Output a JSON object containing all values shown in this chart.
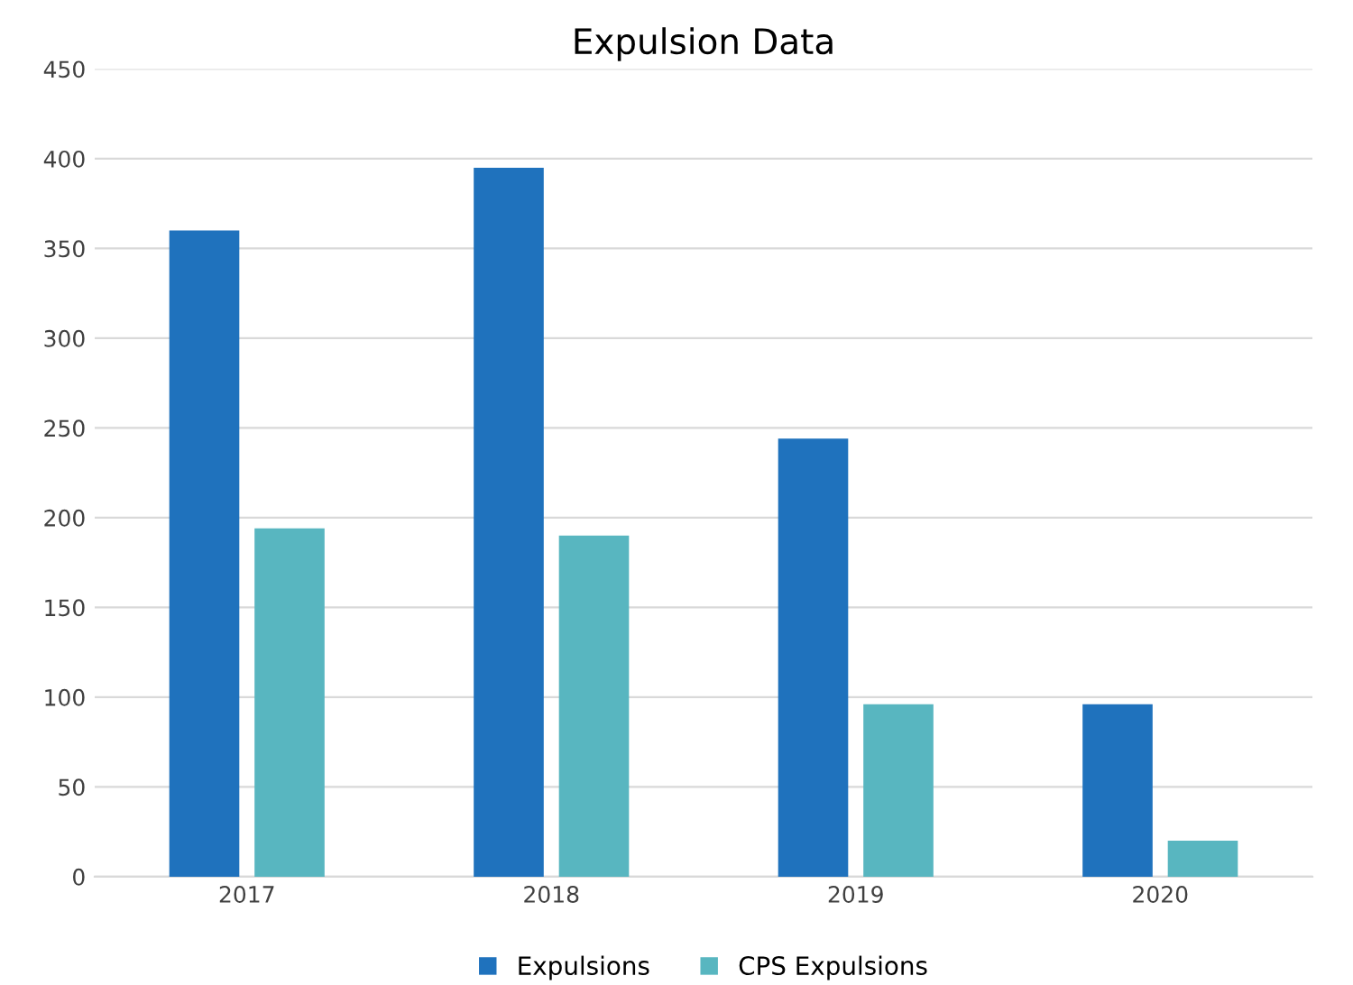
{
  "chart_data": {
    "type": "bar",
    "title": "Expulsion Data",
    "categories": [
      "2017",
      "2018",
      "2019",
      "2020"
    ],
    "series": [
      {
        "name": "Expulsions",
        "color": "#1f72bd",
        "values": [
          360,
          395,
          244,
          96
        ]
      },
      {
        "name": "CPS Expulsions",
        "color": "#58b6c0",
        "values": [
          194,
          190,
          96,
          20
        ]
      }
    ],
    "ylim": [
      0,
      450
    ],
    "yticks": [
      0,
      50,
      100,
      150,
      200,
      250,
      300,
      350,
      400,
      450
    ],
    "grid": "y",
    "legend": "bottom"
  }
}
